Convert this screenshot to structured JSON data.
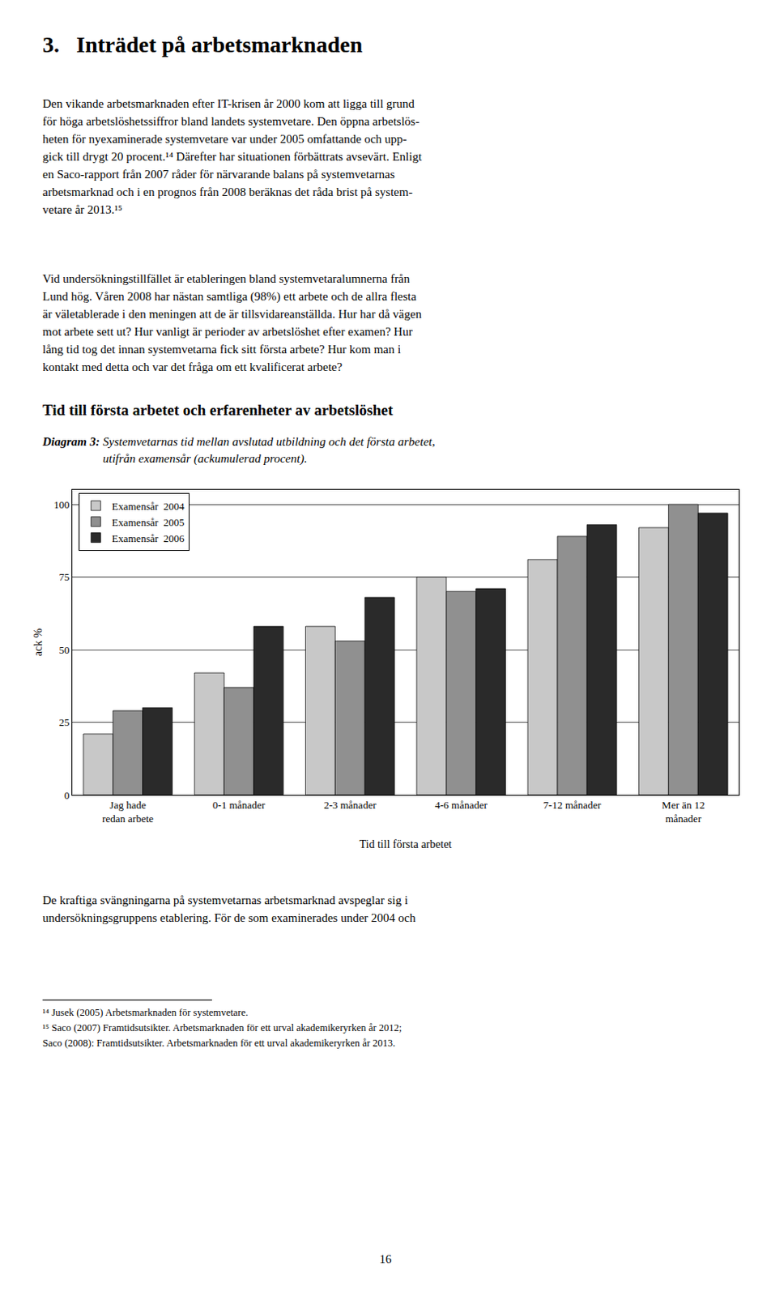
{
  "page_title": "3.   Inträdet på arbetsmarknaden",
  "paragraph_1": [
    "Den vikande arbetsmarknaden efter IT-krisen år 2000 kom att ligga till grund",
    "för höga arbetslöshetssiffror bland landets systemvetare. Den öppna arbetslös-",
    "heten för nyexaminerade systemvetare var under 2005 omfattande och upp-",
    "gick till drygt 20 procent.¹⁴ Därefter har situationen förbättrats avsevärt. Enligt",
    "en Saco-rapport från 2007 råder för närvarande balans på systemvetarnas",
    "arbetsmarknad och i en prognos från 2008 beräknas det råda brist på system-",
    "vetare år 2013.¹⁵"
  ],
  "paragraph_2": [
    "Vid undersökningstillfället är etableringen bland systemvetaralumnerna från",
    "Lund hög. Våren 2008 har nästan samtliga (98%) ett arbete och de allra flesta",
    "är väletablerade i den meningen att de är tillsvidareanställda. Hur har då vägen",
    "mot arbete sett ut? Hur vanligt är perioder av arbetslöshet efter examen? Hur",
    "lång tid tog det innan systemvetarna fick sitt första arbete? Hur kom man i",
    "kontakt med detta och var det fråga om ett kvalificerat arbete?"
  ],
  "section_heading": "Tid till första arbetet och erfarenheter av arbetslöshet",
  "caption_label": "Diagram 3:",
  "caption": [
    "Systemvetarnas tid mellan avslutad utbildning och det första arbetet,",
    "utifrån examensår (ackumulerad procent)."
  ],
  "paragraph_3": [
    "De kraftiga svängningarna på systemvetarnas arbetsmarknad avspeglar sig i",
    "undersökningsgruppens etablering. För de som examinerades under 2004 och"
  ],
  "footnotes": [
    "¹⁴ Jusek (2005) Arbetsmarknaden för systemvetare.",
    "¹⁵ Saco (2007) Framtidsutsikter. Arbetsmarknaden för ett urval akademikeryrken år 2012;",
    "Saco (2008): Framtidsutsikter. Arbetsmarknaden för ett urval akademikeryrken år 2013."
  ],
  "page_number": "16",
  "chart_data": {
    "type": "bar",
    "x_label": "Tid till första arbetet",
    "y_label": "ack %",
    "categories": [
      "Jag hade\nredan arbete",
      "0-1 månader",
      "2-3 månader",
      "4-6 månader",
      "7-12 månader",
      "Mer än 12\nmånader"
    ],
    "series": [
      {
        "name": "Examensår  2004",
        "color": "#c8c8c8",
        "values": [
          21,
          42,
          58,
          75,
          81,
          92
        ]
      },
      {
        "name": "Examensår  2005",
        "color": "#909090",
        "values": [
          29,
          37,
          53,
          70,
          89,
          100
        ]
      },
      {
        "name": "Examensår  2006",
        "color": "#2a2a2a",
        "values": [
          30,
          58,
          68,
          71,
          93,
          97
        ]
      }
    ],
    "ylim": [
      0,
      105
    ],
    "yticks": [
      0,
      25,
      50,
      75,
      100
    ],
    "grid": true,
    "legend": "upper left"
  }
}
